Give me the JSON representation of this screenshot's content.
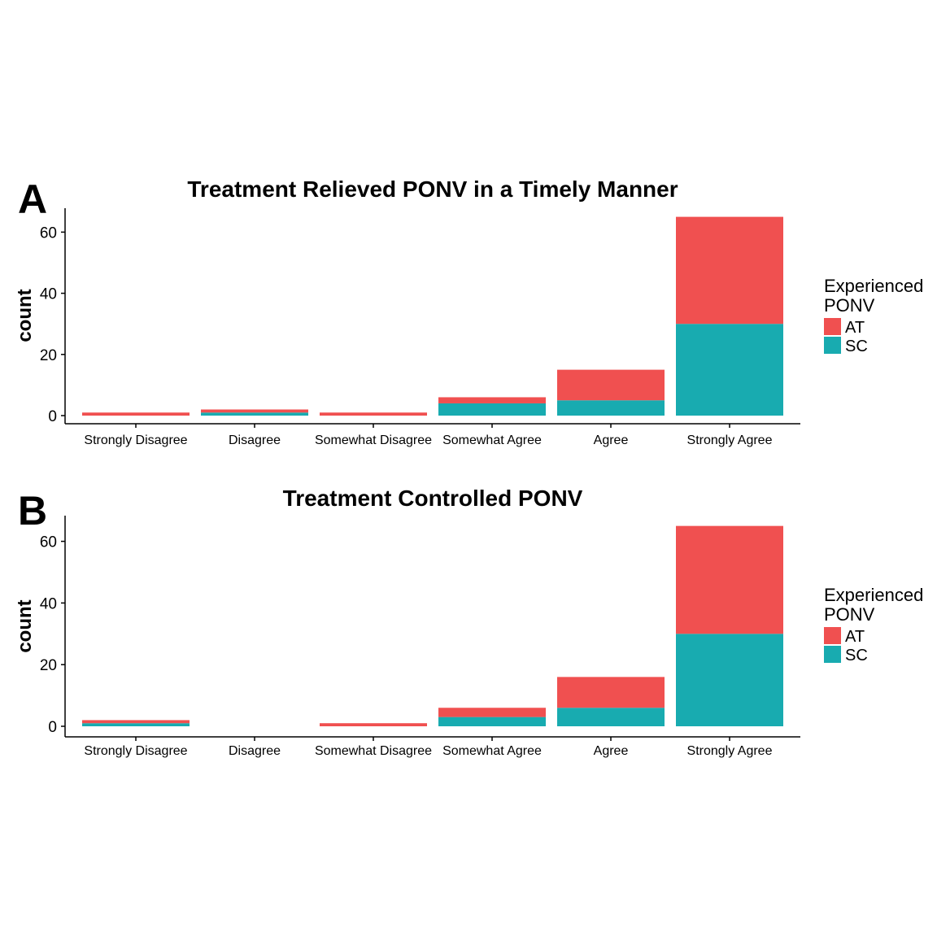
{
  "colors": {
    "AT": "#F05050",
    "SC": "#18ABB0",
    "axis": "#000000"
  },
  "chart_data": [
    {
      "panel_letter": "A",
      "type": "bar",
      "stacked": true,
      "title": "Treatment Relieved PONV in a Timely Manner",
      "xlabel": "",
      "ylabel": "count",
      "categories": [
        "Strongly Disagree",
        "Disagree",
        "Somewhat Disagree",
        "Somewhat Agree",
        "Agree",
        "Strongly Agree"
      ],
      "series": [
        {
          "name": "SC",
          "values": [
            0,
            1,
            0,
            4,
            5,
            30
          ]
        },
        {
          "name": "AT",
          "values": [
            1,
            1,
            1,
            2,
            10,
            35
          ]
        }
      ],
      "ylim": [
        0,
        68
      ],
      "yticks": [
        "0",
        "20",
        "40",
        "60"
      ],
      "legend": {
        "title_line1": "Experienced",
        "title_line2": "PONV",
        "position": "right",
        "items": [
          "AT",
          "SC"
        ]
      },
      "grid": false
    },
    {
      "panel_letter": "B",
      "type": "bar",
      "stacked": true,
      "title": "Treatment Controlled PONV",
      "xlabel": "",
      "ylabel": "count",
      "categories": [
        "Strongly Disagree",
        "Disagree",
        "Somewhat Disagree",
        "Somewhat Agree",
        "Agree",
        "Strongly Agree"
      ],
      "series": [
        {
          "name": "SC",
          "values": [
            1,
            0,
            0,
            3,
            6,
            30
          ]
        },
        {
          "name": "AT",
          "values": [
            1,
            0,
            1,
            3,
            10,
            35
          ]
        }
      ],
      "ylim": [
        0,
        68
      ],
      "yticks": [
        "0",
        "20",
        "40",
        "60"
      ],
      "legend": {
        "title_line1": "Experienced",
        "title_line2": "PONV",
        "position": "right",
        "items": [
          "AT",
          "SC"
        ]
      },
      "grid": false
    }
  ]
}
